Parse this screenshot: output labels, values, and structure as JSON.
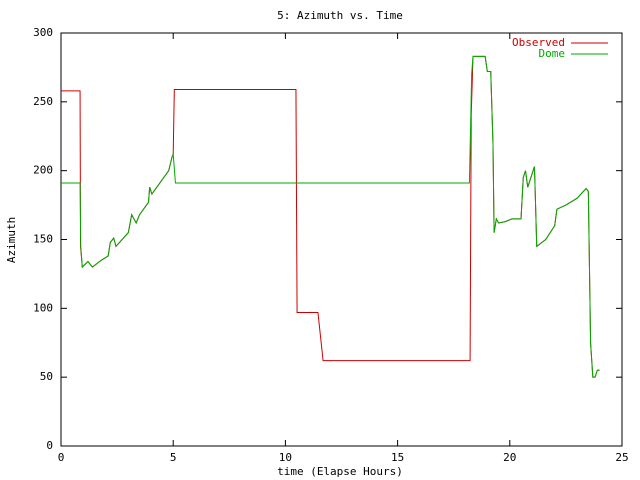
{
  "chart_data": {
    "type": "line",
    "title": "5: Azimuth vs. Time",
    "x_label": "time (Elapse Hours)",
    "y_label": "Azimuth",
    "xlim": [
      0,
      25
    ],
    "xticks": [
      0,
      5,
      10,
      15,
      20,
      25
    ],
    "ylim": [
      0,
      300
    ],
    "yticks": [
      0,
      50,
      100,
      150,
      200,
      250,
      300
    ],
    "grid": false,
    "legend": "top-right",
    "series": [
      {
        "name": "Observed",
        "color": "#cc0000",
        "x": [
          0,
          0.85,
          0.87,
          0.95,
          1.2,
          1.4,
          1.8,
          2.1,
          2.2,
          2.35,
          2.45,
          3.0,
          3.15,
          3.35,
          3.5,
          3.9,
          3.95,
          4.05,
          4.8,
          4.95,
          5.0,
          5.05,
          10.47,
          10.52,
          11.45,
          11.68,
          18.23,
          18.28,
          18.36,
          18.9,
          19.0,
          19.15,
          19.25,
          19.3,
          19.4,
          19.5,
          19.8,
          20.1,
          20.5,
          20.6,
          20.7,
          20.8,
          20.9,
          21.1,
          21.2,
          21.6,
          22.0,
          22.1,
          22.5,
          23.0,
          23.4,
          23.5,
          23.6,
          23.7,
          23.8,
          23.9,
          24.0
        ],
        "values": [
          258,
          258,
          145,
          130,
          134,
          130,
          135,
          138,
          148,
          151,
          145,
          155,
          168,
          162,
          168,
          177,
          188,
          183,
          200,
          210,
          212,
          259,
          259,
          97,
          97,
          62,
          62,
          240,
          283,
          283,
          272,
          272,
          220,
          155,
          165,
          162,
          163,
          165,
          165,
          195,
          200,
          188,
          193,
          203,
          145,
          150,
          160,
          172,
          175,
          180,
          187,
          185,
          75,
          50,
          50,
          55,
          55
        ]
      },
      {
        "name": "Dome",
        "color": "#00aa00",
        "x": [
          0,
          0.85,
          0.88,
          0.95,
          1.2,
          1.4,
          1.8,
          2.1,
          2.2,
          2.35,
          2.45,
          3.0,
          3.15,
          3.35,
          3.5,
          3.9,
          3.95,
          4.05,
          4.8,
          4.95,
          5.0,
          5.1,
          18.2,
          18.3,
          18.36,
          18.9,
          19.0,
          19.15,
          19.25,
          19.3,
          19.4,
          19.5,
          19.8,
          20.1,
          20.5,
          20.6,
          20.7,
          20.8,
          20.9,
          21.1,
          21.2,
          21.6,
          22.0,
          22.1,
          22.5,
          23.0,
          23.4,
          23.5,
          23.6,
          23.7,
          23.8,
          23.9,
          24.0
        ],
        "values": [
          191,
          191,
          145,
          130,
          134,
          130,
          135,
          138,
          148,
          151,
          145,
          155,
          168,
          162,
          168,
          177,
          188,
          183,
          200,
          210,
          212,
          191,
          191,
          270,
          283,
          283,
          272,
          272,
          220,
          155,
          165,
          162,
          163,
          165,
          165,
          195,
          200,
          188,
          193,
          203,
          145,
          150,
          160,
          172,
          175,
          180,
          187,
          185,
          75,
          50,
          50,
          55,
          55
        ]
      }
    ]
  }
}
